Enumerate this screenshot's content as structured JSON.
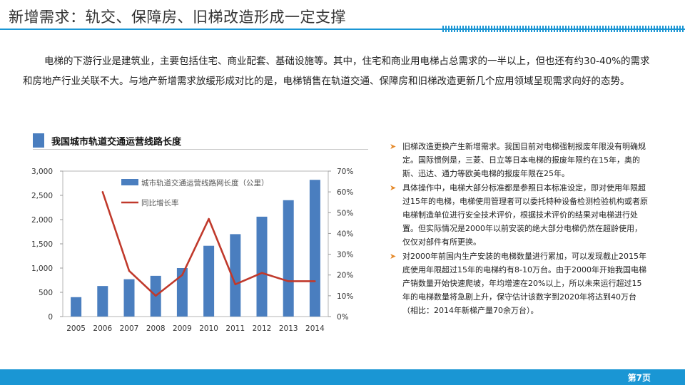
{
  "title": "新增需求：轨交、保障房、旧梯改造形成一定支撑",
  "intro": "电梯的下游行业是建筑业，主要包括住宅、商业配套、基础设施等。其中，住宅和商业用电梯占总需求的一半以上，但也还有约30-40%的需求和房地产行业关联不大。与地产新增需求放缓形成对比的是，电梯销售在轨道交通、保障房和旧梯改造更新几个应用领域呈现需求向好的态势。",
  "chart_title": "我国城市轨道交通运营线路长度",
  "chart_data": {
    "type": "bar",
    "categories": [
      "2005",
      "2006",
      "2007",
      "2008",
      "2009",
      "2010",
      "2011",
      "2012",
      "2013",
      "2014"
    ],
    "series": [
      {
        "name": "城市轨道交通运营线路网长度（公里）",
        "type": "bar",
        "axis": "left",
        "color": "#4a7ebf",
        "values": [
          400,
          630,
          770,
          840,
          1000,
          1460,
          1700,
          2060,
          2400,
          2820
        ]
      },
      {
        "name": "同比增长率",
        "type": "line",
        "axis": "right",
        "color": "#c0392b",
        "values": [
          null,
          0.6,
          0.22,
          0.1,
          0.2,
          0.47,
          0.155,
          0.21,
          0.17,
          0.17
        ]
      }
    ],
    "ylim": [
      0,
      3000
    ],
    "yticks": [
      "0",
      "500",
      "1,000",
      "1,500",
      "2,000",
      "2,500",
      "3,000"
    ],
    "y2lim": [
      0,
      0.7
    ],
    "y2ticks": [
      "0%",
      "10%",
      "20%",
      "30%",
      "40%",
      "50%",
      "60%",
      "70%"
    ],
    "grid": false,
    "legend_position": "top-left"
  },
  "bullets": [
    "旧梯改造更换产生新增需求。我国目前对电梯强制报废年限没有明确规定。国际惯例是，三菱、日立等日本电梯的报废年限约在15年，奥的斯、迅达、通力等欧美电梯的报废年限在25年。",
    "具体操作中，电梯大部分标准都是参照日本标准设定，即对使用年限超过15年的电梯，电梯使用管理者可以委托特种设备检测检验机构或者原电梯制造单位进行安全技术评价，根据技术评价的结果对电梯进行处置。但实际情况是2000年以前安装的绝大部分电梯仍然在超龄使用，仅仅对部件有所更换。",
    "对2000年前国内生产安装的电梯数量进行累加，可以发现截止2015年底使用年限超过15年的电梯约有8-10万台。由于2000年开始我国电梯产销数量开始快速爬坡，年均增速在20%以上，所以未来运行超过15年的电梯数量将急剧上升，保守估计该数字到2020年将达到40万台（相比：2014年新梯产量70余万台）。"
  ],
  "page_label": "第7页",
  "colors": {
    "accent": "#1a96d4",
    "bar": "#4a7ebf",
    "line": "#c0392b",
    "bullet_arrow": "#e58a2b"
  }
}
